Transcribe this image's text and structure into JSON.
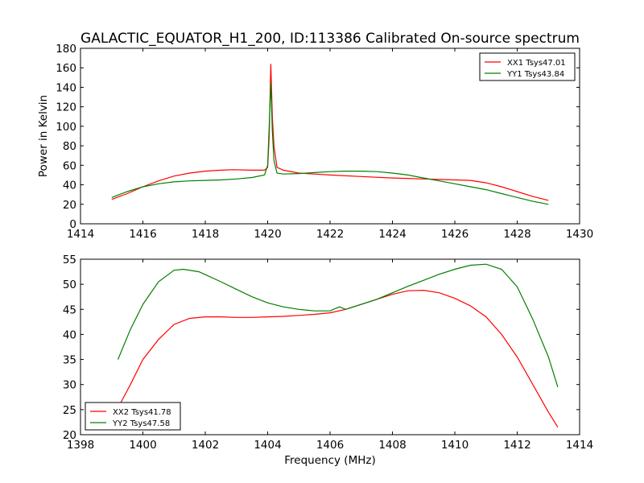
{
  "figure": {
    "title": "GALACTIC_EQUATOR_H1_200, ID:113386 Calibrated On-source spectrum"
  },
  "chart_data": [
    {
      "type": "line",
      "title": "GALACTIC_EQUATOR_H1_200, ID:113386 Calibrated On-source spectrum",
      "xlabel": "",
      "ylabel": "Power in Kelvin",
      "xlim": [
        1414,
        1430
      ],
      "ylim": [
        0,
        180
      ],
      "xticks": [
        1414,
        1416,
        1418,
        1420,
        1422,
        1424,
        1426,
        1428,
        1430
      ],
      "yticks": [
        0,
        20,
        40,
        60,
        80,
        100,
        120,
        140,
        160,
        180
      ],
      "grid": false,
      "legend": "top-right",
      "series": [
        {
          "name": "XX1 Tsys47.01",
          "color": "#ff0000",
          "x": [
            1415.0,
            1415.5,
            1416.0,
            1416.5,
            1417.0,
            1417.5,
            1418.0,
            1418.5,
            1418.9,
            1419.5,
            1419.9,
            1420.0,
            1420.05,
            1420.1,
            1420.15,
            1420.2,
            1420.3,
            1420.5,
            1421.0,
            1421.5,
            1422.0,
            1423.0,
            1424.0,
            1425.0,
            1425.5,
            1426.0,
            1426.5,
            1427.0,
            1427.5,
            1428.0,
            1428.5,
            1429.0
          ],
          "values": [
            25,
            31,
            38,
            44,
            49,
            52,
            54,
            55,
            55.5,
            55,
            55,
            58,
            90,
            164,
            110,
            80,
            58,
            55,
            52,
            51,
            50,
            48.5,
            47,
            46,
            45.5,
            45,
            44.5,
            42,
            38,
            33,
            28,
            24
          ]
        },
        {
          "name": "YY1 Tsys43.84",
          "color": "#008000",
          "x": [
            1415.0,
            1415.5,
            1416.0,
            1416.5,
            1417.0,
            1417.5,
            1418.0,
            1418.5,
            1419.0,
            1419.5,
            1419.9,
            1420.0,
            1420.05,
            1420.1,
            1420.15,
            1420.2,
            1420.3,
            1420.5,
            1421.0,
            1421.5,
            1422.0,
            1422.5,
            1423.0,
            1423.5,
            1424.0,
            1424.5,
            1425.0,
            1425.5,
            1426.0,
            1426.5,
            1427.0,
            1427.5,
            1428.0,
            1428.5,
            1429.0
          ],
          "values": [
            27,
            33,
            38,
            41,
            43,
            44,
            44.5,
            45,
            46,
            47.5,
            50,
            60,
            100,
            145,
            95,
            65,
            52,
            51,
            51.5,
            52.5,
            53.5,
            54,
            54,
            53.5,
            52,
            50,
            47,
            44,
            41,
            38,
            35,
            31,
            27,
            23,
            20
          ]
        }
      ]
    },
    {
      "type": "line",
      "title": "",
      "xlabel": "Frequency (MHz)",
      "ylabel": "",
      "xlim": [
        1398,
        1414
      ],
      "ylim": [
        20,
        55
      ],
      "xticks": [
        1398,
        1400,
        1402,
        1404,
        1406,
        1408,
        1410,
        1412,
        1414
      ],
      "yticks": [
        20,
        25,
        30,
        35,
        40,
        45,
        50,
        55
      ],
      "grid": false,
      "legend": "bottom-left",
      "series": [
        {
          "name": "XX2 Tsys41.78",
          "color": "#ff0000",
          "x": [
            1399.3,
            1399.6,
            1400.0,
            1400.5,
            1401.0,
            1401.5,
            1402.0,
            1402.5,
            1403.0,
            1403.5,
            1404.0,
            1404.5,
            1405.0,
            1405.5,
            1406.0,
            1406.5,
            1407.0,
            1407.5,
            1408.0,
            1408.5,
            1409.0,
            1409.5,
            1410.0,
            1410.5,
            1411.0,
            1411.5,
            1412.0,
            1412.5,
            1413.0,
            1413.3
          ],
          "values": [
            26.5,
            30,
            35,
            39,
            42,
            43.2,
            43.5,
            43.5,
            43.4,
            43.4,
            43.5,
            43.6,
            43.8,
            44,
            44.3,
            45,
            46,
            47,
            48,
            48.7,
            48.8,
            48.3,
            47.2,
            45.7,
            43.5,
            40,
            35.5,
            30,
            24.5,
            21.5
          ]
        },
        {
          "name": "YY2 Tsys47.58",
          "color": "#008000",
          "x": [
            1399.2,
            1399.6,
            1400.0,
            1400.5,
            1401.0,
            1401.3,
            1401.8,
            1402.5,
            1403.0,
            1403.5,
            1404.0,
            1404.5,
            1405.0,
            1405.5,
            1406.0,
            1406.3,
            1406.5,
            1407.0,
            1407.5,
            1408.0,
            1408.5,
            1409.0,
            1409.5,
            1410.0,
            1410.5,
            1411.0,
            1411.5,
            1412.0,
            1412.5,
            1413.0,
            1413.3
          ],
          "values": [
            35,
            41,
            46,
            50.5,
            52.8,
            53,
            52.5,
            50.5,
            49,
            47.5,
            46.3,
            45.5,
            45,
            44.7,
            44.7,
            45.5,
            45,
            46,
            47,
            48.3,
            49.6,
            50.8,
            52,
            53,
            53.8,
            54,
            53,
            49.5,
            43,
            35.5,
            29.5
          ]
        }
      ]
    }
  ]
}
